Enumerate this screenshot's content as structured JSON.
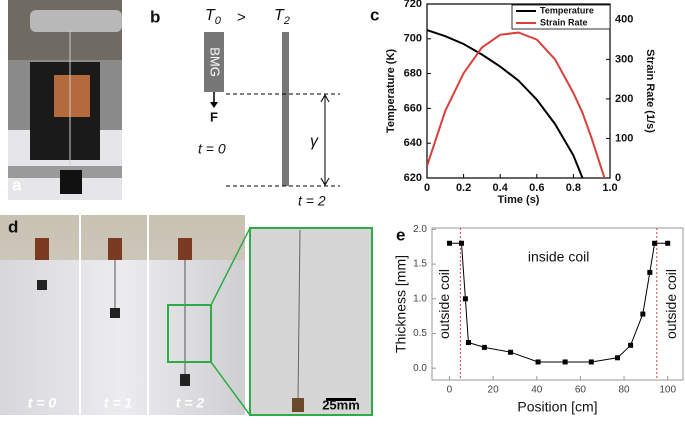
{
  "panels": {
    "a": "a",
    "b": "b",
    "c": "c",
    "d": "d",
    "e": "e"
  },
  "diagram": {
    "left_symbol": "T",
    "left_sub": "0",
    "relation": ">",
    "right_symbol": "T",
    "right_sub": "2",
    "sample": "BMG",
    "force": "F",
    "start": "t = 0",
    "strain": "γ",
    "end": "t = 2"
  },
  "photos": {
    "times": [
      "t = 0",
      "t = 1",
      "t = 2"
    ],
    "scale_bar": "25mm"
  },
  "chart_data": [
    {
      "type": "line",
      "x_label": "Time (s)",
      "y_label": "Temperature (K)",
      "y2_label": "Strain Rate (1/s)",
      "x": [
        0,
        0.1,
        0.2,
        0.3,
        0.4,
        0.5,
        0.6,
        0.7,
        0.8,
        0.85,
        0.9,
        0.97
      ],
      "series": [
        {
          "name": "Temperature",
          "color": "#000000",
          "values": [
            705,
            701.5,
            697,
            691,
            684,
            676,
            665,
            651,
            633,
            620,
            null,
            null
          ]
        },
        {
          "name": "Strain Rate",
          "color": "#d9403c",
          "axis": "y2",
          "values": [
            30,
            170,
            265,
            330,
            362,
            368,
            350,
            300,
            215,
            165,
            100,
            0
          ]
        }
      ],
      "xlim": [
        0,
        1
      ],
      "xticks": [
        0,
        0.2,
        0.4,
        0.6,
        0.8,
        {
          "value": 1,
          "label": "1.0"
        }
      ],
      "ylim": [
        620,
        720
      ],
      "yticks": [
        620,
        640,
        660,
        680,
        700,
        720
      ],
      "y2lim": [
        0,
        440
      ],
      "y2ticks": [
        0,
        100,
        200,
        300,
        400
      ],
      "legend": "upper right"
    },
    {
      "type": "line",
      "markers": true,
      "x_label": "Position [cm]",
      "y_label": "Thickness [mm]",
      "annotations": [
        "inside coil",
        "outside coil",
        "outside coil"
      ],
      "x": [
        0,
        5.5,
        7.3,
        8.7,
        16,
        28,
        40.6,
        53,
        65,
        77,
        83,
        88.6,
        91.8,
        94,
        100
      ],
      "series": [
        {
          "name": "Thickness",
          "color": "#000000",
          "values": [
            1.8,
            1.8,
            1.0,
            0.37,
            0.3,
            0.23,
            0.09,
            0.09,
            0.09,
            0.15,
            0.33,
            0.78,
            1.38,
            1.8,
            1.8
          ]
        }
      ],
      "reference_lines": [
        5,
        95
      ],
      "reference_color": "#d9403c",
      "xlim": [
        -8,
        107
      ],
      "xticks": [
        0,
        20,
        40,
        60,
        80,
        100
      ],
      "ylim": [
        -0.17,
        2.02
      ],
      "yticks": [
        {
          "value": 0,
          "label": "0.0"
        },
        0.5,
        {
          "value": 1,
          "label": "1.0"
        },
        1.5,
        {
          "value": 2,
          "label": "2.0"
        }
      ]
    }
  ]
}
